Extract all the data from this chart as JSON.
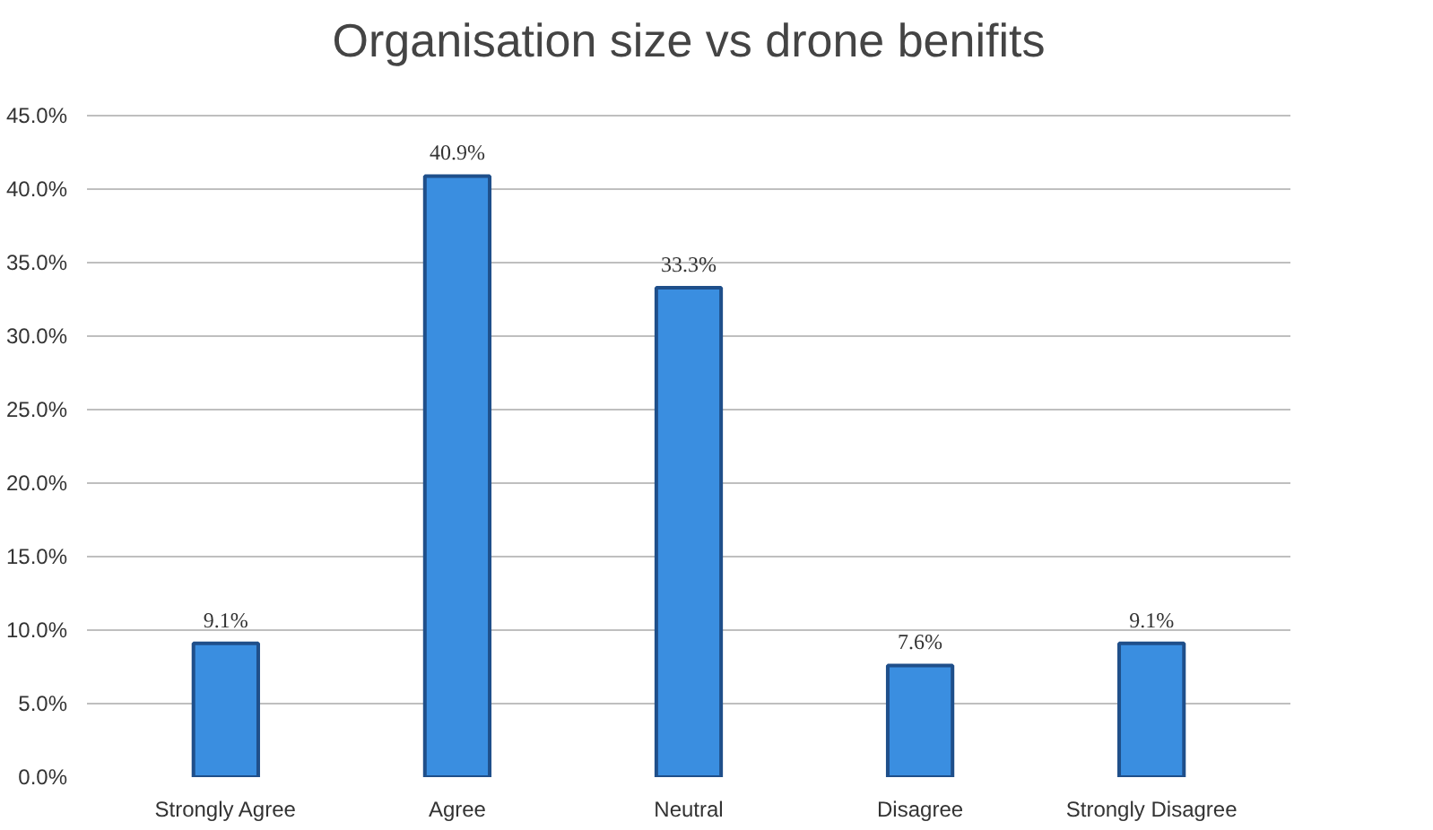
{
  "chart_data": {
    "type": "bar",
    "title": "Organisation size vs drone benifits",
    "categories": [
      "Strongly Agree",
      "Agree",
      "Neutral",
      "Disagree",
      "Strongly Disagree"
    ],
    "values": [
      9.1,
      40.9,
      33.3,
      7.6,
      9.1
    ],
    "value_labels": [
      "9.1%",
      "40.9%",
      "33.3%",
      "7.6%",
      "9.1%"
    ],
    "color": "#3a8ee0",
    "ylim": [
      0,
      45
    ],
    "yticks": [
      {
        "value": 0,
        "label": "0.0%"
      },
      {
        "value": 5,
        "label": "5.0%"
      },
      {
        "value": 10,
        "label": "10.0%"
      },
      {
        "value": 15,
        "label": "15.0%"
      },
      {
        "value": 20,
        "label": "20.0%"
      },
      {
        "value": 25,
        "label": "25.0%"
      },
      {
        "value": 30,
        "label": "30.0%"
      },
      {
        "value": 35,
        "label": "35.0%"
      },
      {
        "value": 40,
        "label": "40.0%"
      },
      {
        "value": 45,
        "label": "45.0%"
      }
    ],
    "grid": "y"
  }
}
